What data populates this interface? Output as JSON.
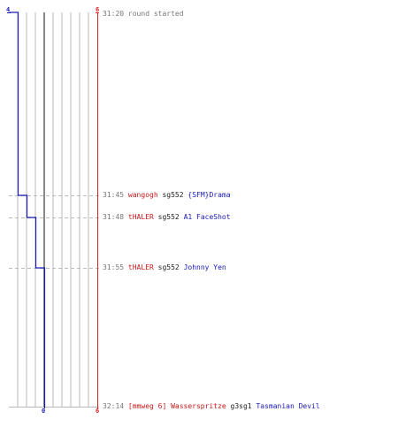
{
  "colors": {
    "team_blue": "#1a1ab8",
    "team_red": "#dd2222",
    "time": "#777777",
    "grid": "#b8b8b8",
    "center": "#888888",
    "weapon": "#222222"
  },
  "scores": {
    "blue_top": "4",
    "red_top": "6",
    "blue_bottom": "0",
    "red_bottom": "6"
  },
  "events": [
    {
      "time": "31:20",
      "text": "round started"
    },
    {
      "time": "31:45",
      "killer": "wangogh",
      "weapon": "sg552",
      "victim": "{SFM}Drama"
    },
    {
      "time": "31:48",
      "killer": "tHALER",
      "weapon": "sg552",
      "victim": "A1 FaceShot"
    },
    {
      "time": "31:55",
      "killer": "tHALER",
      "weapon": "sg552",
      "victim": "Johnny Yen"
    },
    {
      "time": "32:14",
      "killer": "[mmweg 6] Wasserspritze",
      "weapon": "g3sg1",
      "victim": "Tasmanian Devil"
    }
  ],
  "blue_alive": [
    4,
    3,
    2,
    1,
    0
  ]
}
